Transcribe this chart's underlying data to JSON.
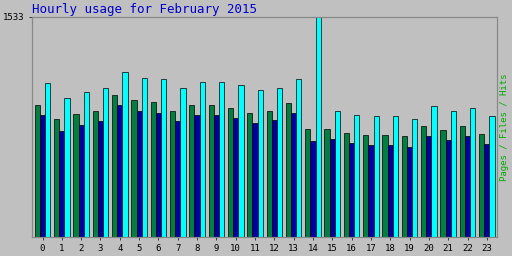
{
  "title": "Hourly usage for February 2015",
  "title_color": "#0000cc",
  "title_fontsize": 9,
  "background_color": "#c0c0c0",
  "plot_bg_color": "#c0c0c0",
  "x_labels": [
    "0",
    "1",
    "2",
    "3",
    "4",
    "5",
    "6",
    "7",
    "8",
    "9",
    "10",
    "11",
    "12",
    "13",
    "14",
    "15",
    "16",
    "17",
    "18",
    "19",
    "20",
    "21",
    "22",
    "23"
  ],
  "ylabel_right": "Pages / Files / Hits",
  "ymax": 1533,
  "ytick_label": "1533",
  "hits": [
    1070,
    970,
    1010,
    1040,
    1150,
    1110,
    1100,
    1040,
    1080,
    1080,
    1060,
    1020,
    1040,
    1100,
    1533,
    880,
    850,
    840,
    840,
    820,
    910,
    875,
    900,
    840
  ],
  "pages": [
    920,
    820,
    855,
    875,
    985,
    950,
    940,
    880,
    920,
    920,
    900,
    860,
    880,
    930,
    750,
    750,
    720,
    710,
    710,
    700,
    770,
    745,
    770,
    715
  ],
  "files": [
    850,
    740,
    780,
    810,
    920,
    880,
    865,
    810,
    850,
    850,
    830,
    790,
    815,
    860,
    670,
    680,
    650,
    640,
    640,
    625,
    700,
    675,
    700,
    645
  ],
  "pages_color": "#008040",
  "files_color": "#0000a0",
  "hits_color": "#00ffff",
  "bar_width": 0.27,
  "edge_color": "#000000"
}
